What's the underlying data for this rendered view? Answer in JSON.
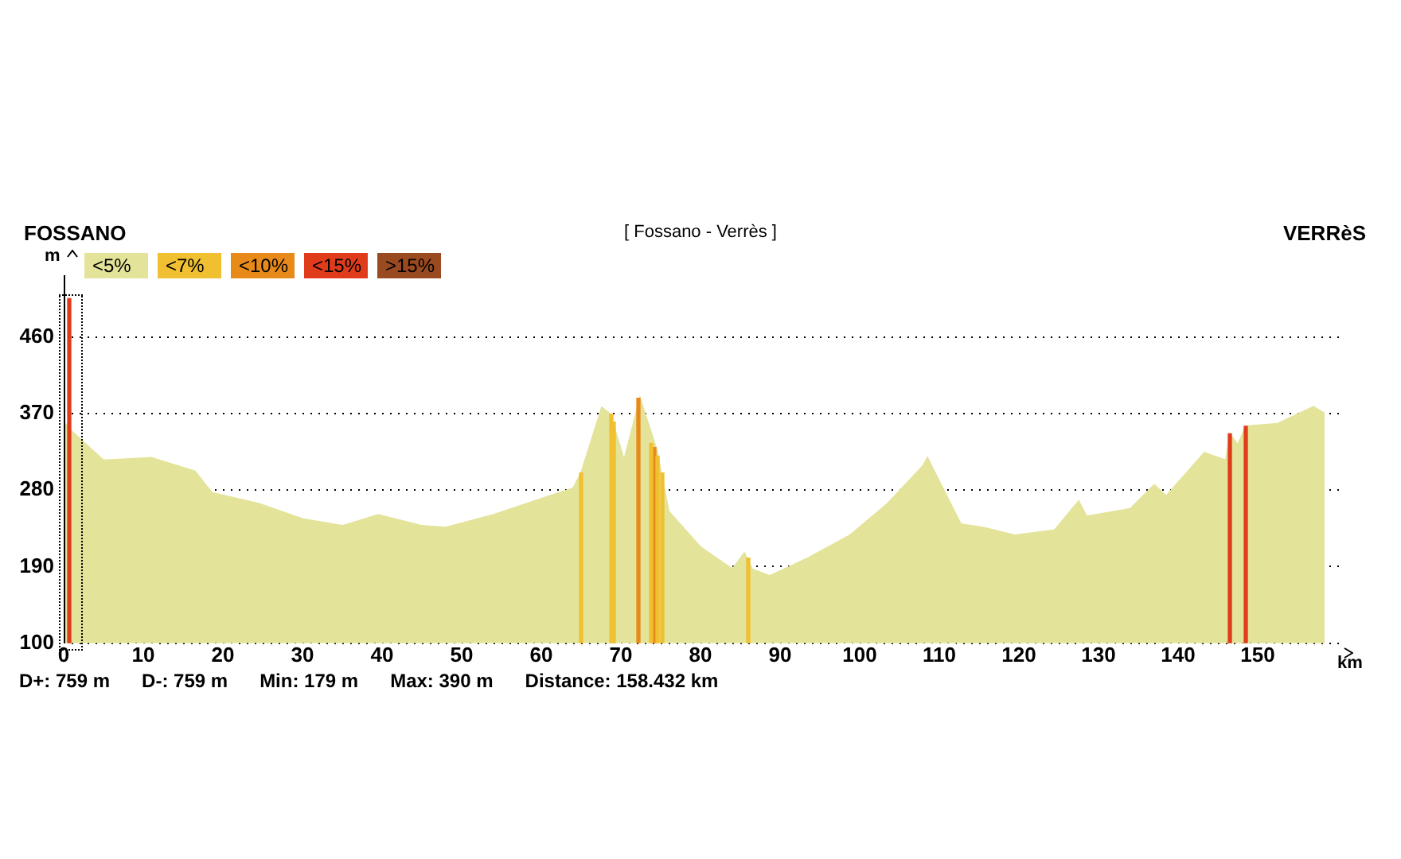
{
  "chart_data": {
    "type": "area",
    "title": "[ Fossano - Verrès ]",
    "xlabel": "km",
    "ylabel": "m",
    "annotations": [
      "FOSSANO",
      "VERRèS",
      "D+: 759 m",
      "D-: 759 m",
      "Min: 179 m",
      "Max: 390 m",
      "Distance: 158.432 km"
    ],
    "series": [
      {
        "name": "<5%",
        "color": "#e3e39a",
        "x": [
          0,
          1,
          5,
          11,
          16.5,
          18.6,
          24.5,
          30,
          35,
          39.5,
          45,
          48,
          54,
          61,
          64,
          65,
          67.6,
          68.7,
          70.4,
          72.4,
          74.5,
          76,
          80,
          84,
          85.5,
          86.5,
          88.7,
          93.5,
          98.8,
          103.5,
          108,
          108.5,
          112.7,
          115.5,
          119.5,
          124.5,
          127.5,
          128.5,
          134,
          137,
          138.5,
          143.3,
          146,
          146.5,
          147.5,
          148.5,
          152.5,
          157,
          158.4
        ],
        "values": [
          360,
          349,
          315,
          318,
          302,
          277,
          264,
          246,
          238,
          251,
          238,
          236,
          251,
          273,
          282,
          300,
          377,
          369,
          315,
          388,
          327,
          255,
          213,
          187,
          206,
          187,
          179,
          200,
          227,
          264,
          309,
          318,
          240,
          236,
          227,
          233,
          267,
          249,
          258,
          286,
          273,
          324,
          315,
          346,
          333,
          355,
          358,
          378,
          370
        ]
      },
      {
        "name": "<7%",
        "color": "#f0c030",
        "type": "bar",
        "x": [
          65,
          68.8,
          69.1,
          73.8,
          74.6,
          75.2,
          86
        ],
        "values": [
          300,
          369,
          360,
          335,
          320,
          300,
          200
        ]
      },
      {
        "name": "<10%",
        "color": "#e88a1a",
        "type": "bar",
        "x": [
          72.2,
          74.2
        ],
        "values": [
          388,
          330
        ]
      },
      {
        "name": "<15%",
        "color": "#e03c1c",
        "type": "bar",
        "x": [
          0.7,
          146.5,
          148.5
        ],
        "values": [
          505,
          346,
          355
        ]
      },
      {
        "name": ">15%",
        "color": "#9a4a20",
        "type": "bar"
      }
    ],
    "xlim": [
      0,
      161
    ],
    "ylim": [
      100,
      510
    ],
    "xticks": [
      0,
      10,
      20,
      30,
      40,
      50,
      60,
      70,
      80,
      90,
      100,
      110,
      120,
      130,
      140,
      150
    ],
    "yticks": [
      100,
      190,
      280,
      370,
      460
    ],
    "grid": "y",
    "legend": "top left"
  }
}
